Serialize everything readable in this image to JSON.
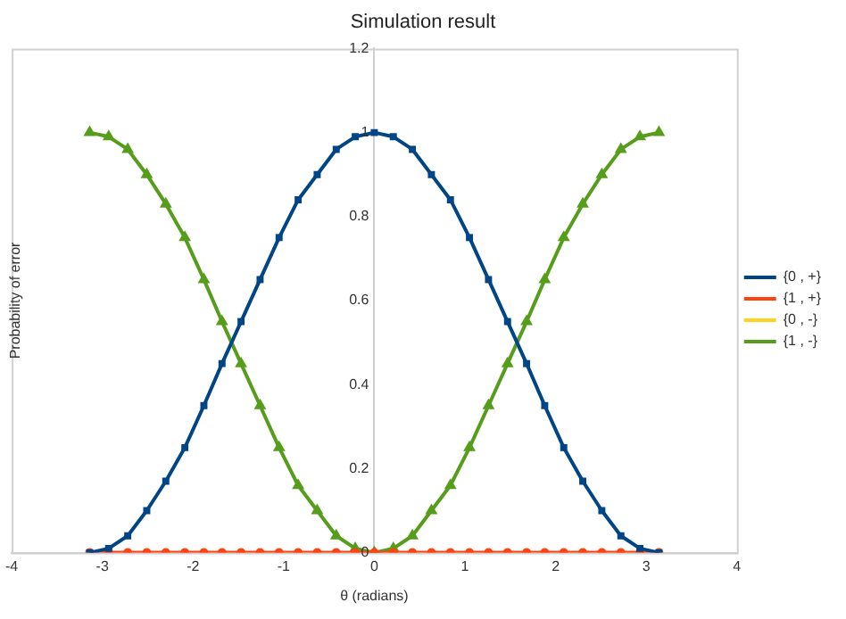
{
  "chart_data": {
    "type": "line",
    "title": "Simulation result",
    "xlabel": "θ (radians)",
    "ylabel": "Probability of error",
    "x": [
      -3.14,
      -2.93,
      -2.72,
      -2.51,
      -2.3,
      -2.09,
      -1.88,
      -1.68,
      -1.47,
      -1.26,
      -1.05,
      -0.84,
      -0.63,
      -0.42,
      -0.21,
      0,
      0.21,
      0.42,
      0.63,
      0.84,
      1.05,
      1.26,
      1.47,
      1.68,
      1.88,
      2.09,
      2.3,
      2.51,
      2.72,
      2.93,
      3.14
    ],
    "series": [
      {
        "name": "{0 , +}",
        "color": "#004586",
        "marker": "square",
        "values": [
          0,
          0.01,
          0.04,
          0.1,
          0.17,
          0.25,
          0.35,
          0.45,
          0.55,
          0.65,
          0.75,
          0.84,
          0.9,
          0.96,
          0.99,
          1,
          0.99,
          0.96,
          0.9,
          0.84,
          0.75,
          0.65,
          0.55,
          0.45,
          0.35,
          0.25,
          0.17,
          0.1,
          0.04,
          0.01,
          0
        ]
      },
      {
        "name": "{1 , +}",
        "color": "#ff420e",
        "marker": "circle",
        "values": [
          0,
          0,
          0,
          0,
          0,
          0,
          0,
          0,
          0,
          0,
          0,
          0,
          0,
          0,
          0,
          0,
          0,
          0,
          0,
          0,
          0,
          0,
          0,
          0,
          0,
          0,
          0,
          0,
          0,
          0,
          0
        ]
      },
      {
        "name": "{0 , -}",
        "color": "#ffd320",
        "marker": "circle",
        "values": [
          null,
          null,
          null,
          null,
          null,
          null,
          null,
          null,
          null,
          null,
          null,
          null,
          null,
          null,
          null,
          null,
          null,
          null,
          null,
          null,
          null,
          null,
          null,
          null,
          null,
          null,
          null,
          null,
          null,
          null,
          null
        ]
      },
      {
        "name": "{1 , -}",
        "color": "#579d1c",
        "marker": "triangle",
        "values": [
          1,
          0.99,
          0.96,
          0.9,
          0.83,
          0.75,
          0.65,
          0.55,
          0.45,
          0.35,
          0.25,
          0.16,
          0.1,
          0.04,
          0.01,
          0,
          0.01,
          0.04,
          0.1,
          0.16,
          0.25,
          0.35,
          0.45,
          0.55,
          0.65,
          0.75,
          0.83,
          0.9,
          0.96,
          0.99,
          1
        ]
      }
    ],
    "xlim": [
      -4,
      4
    ],
    "xticks": [
      -4,
      -3,
      -2,
      -1,
      0,
      1,
      2,
      3,
      4
    ],
    "ylim": [
      0,
      1.2
    ],
    "yticks": [
      0,
      0.2,
      0.4,
      0.6,
      0.8,
      1,
      1.2
    ],
    "grid": false,
    "legend": "right",
    "line_style": "solid"
  }
}
